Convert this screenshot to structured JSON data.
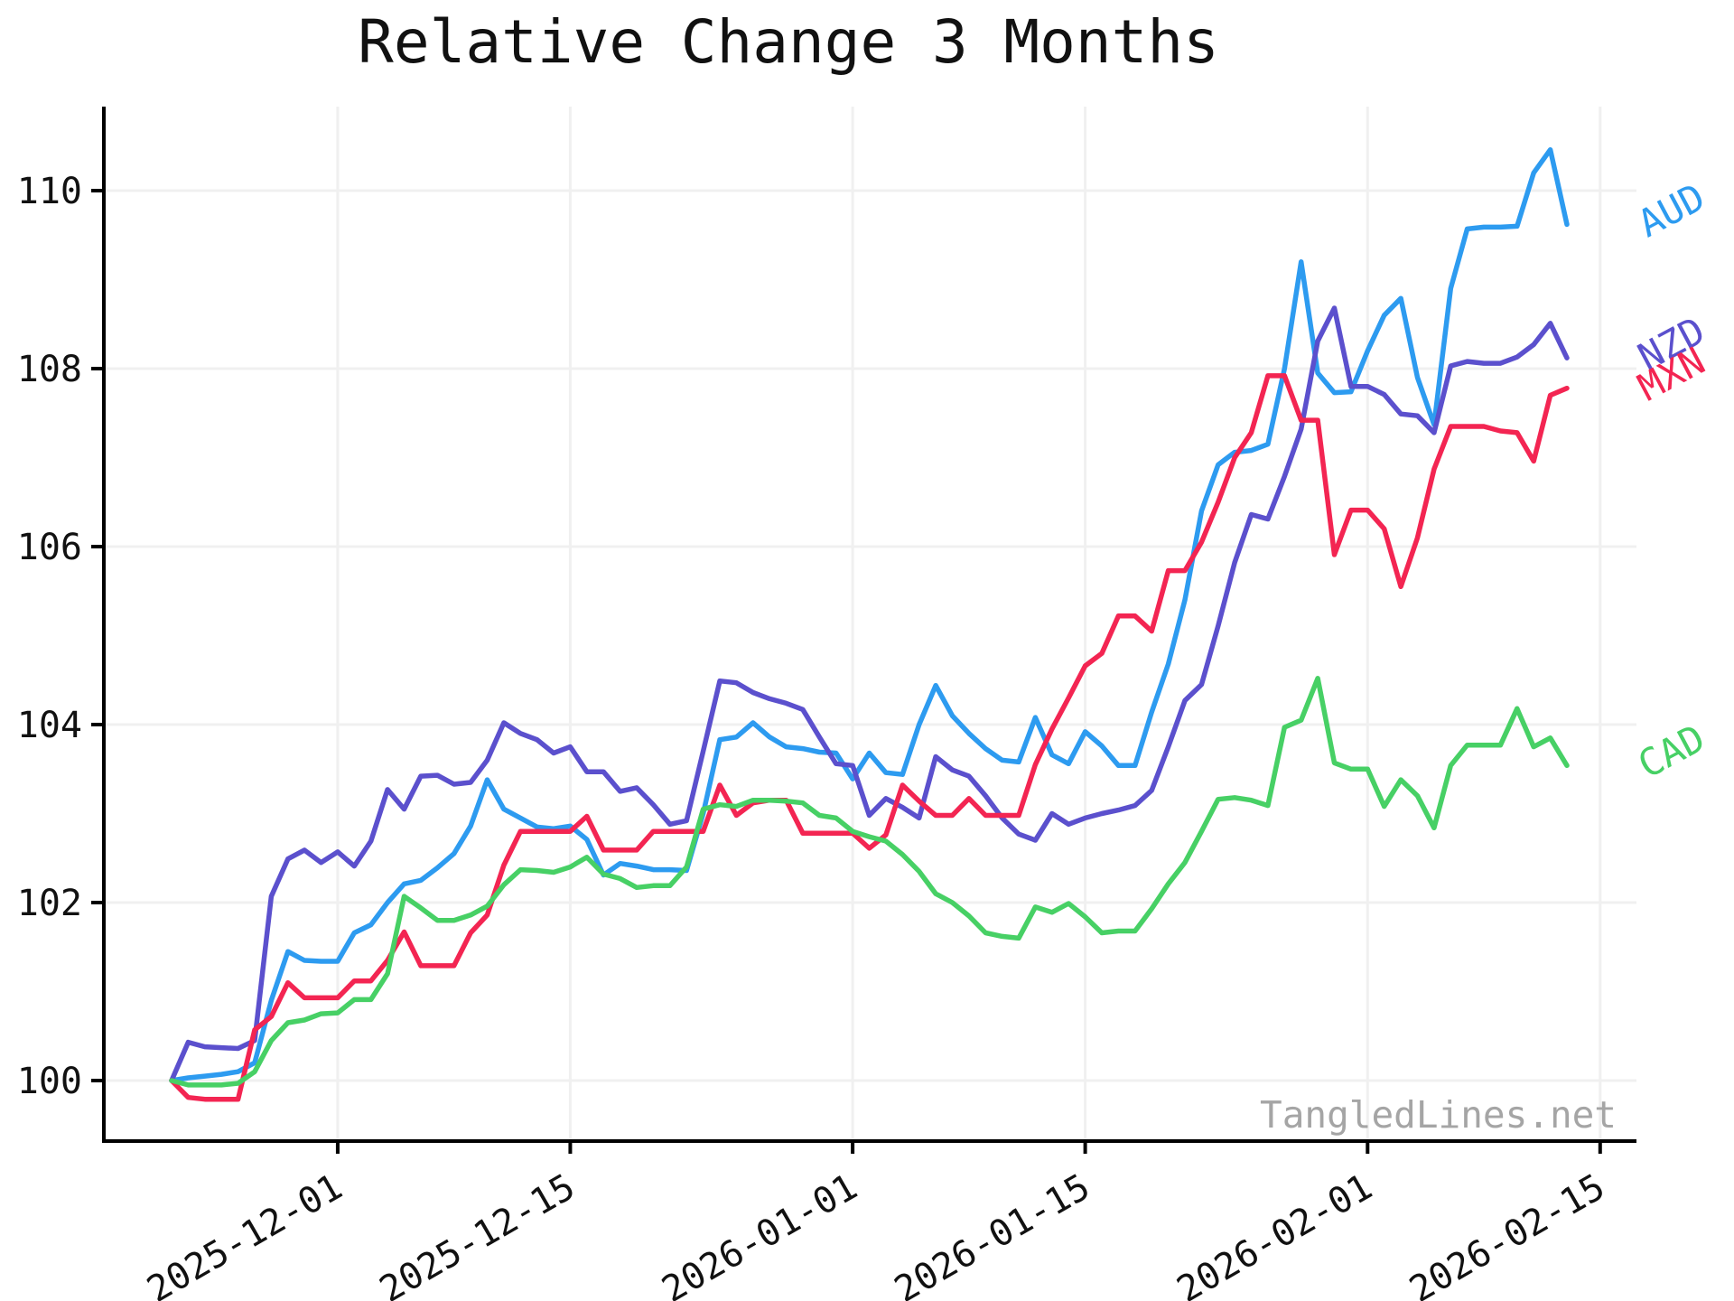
{
  "title": "Relative Change 3 Months",
  "watermark": "TangledLines.net",
  "chart_data": {
    "type": "line",
    "title": "Relative Change 3 Months",
    "xlabel": "",
    "ylabel": "",
    "grid": true,
    "legend_position": "line-end-right",
    "x_tick_rotation_deg": -30,
    "series_label_rotation_deg": -28,
    "ylim": [
      99.3,
      110.95
    ],
    "yticks": [
      100,
      102,
      104,
      106,
      108,
      110
    ],
    "xticks": [
      {
        "label": "2025-12-01",
        "day": 10
      },
      {
        "label": "2025-12-15",
        "day": 24
      },
      {
        "label": "2026-01-01",
        "day": 41
      },
      {
        "label": "2026-01-15",
        "day": 55
      },
      {
        "label": "2026-02-01",
        "day": 72
      },
      {
        "label": "2026-02-15",
        "day": 86
      }
    ],
    "x": [
      "2025-11-21",
      "2025-11-22",
      "2025-11-23",
      "2025-11-24",
      "2025-11-25",
      "2025-11-26",
      "2025-11-27",
      "2025-11-28",
      "2025-11-29",
      "2025-11-30",
      "2025-12-01",
      "2025-12-02",
      "2025-12-03",
      "2025-12-04",
      "2025-12-05",
      "2025-12-06",
      "2025-12-07",
      "2025-12-08",
      "2025-12-09",
      "2025-12-10",
      "2025-12-11",
      "2025-12-12",
      "2025-12-13",
      "2025-12-14",
      "2025-12-15",
      "2025-12-16",
      "2025-12-17",
      "2025-12-18",
      "2025-12-19",
      "2025-12-20",
      "2025-12-21",
      "2025-12-22",
      "2025-12-23",
      "2025-12-24",
      "2025-12-25",
      "2025-12-26",
      "2025-12-27",
      "2025-12-28",
      "2025-12-29",
      "2025-12-30",
      "2025-12-31",
      "2026-01-01",
      "2026-01-02",
      "2026-01-03",
      "2026-01-04",
      "2026-01-05",
      "2026-01-06",
      "2026-01-07",
      "2026-01-08",
      "2026-01-09",
      "2026-01-10",
      "2026-01-11",
      "2026-01-12",
      "2026-01-13",
      "2026-01-14",
      "2026-01-15",
      "2026-01-16",
      "2026-01-17",
      "2026-01-18",
      "2026-01-19",
      "2026-01-20",
      "2026-01-21",
      "2026-01-22",
      "2026-01-23",
      "2026-01-24",
      "2026-01-25",
      "2026-01-26",
      "2026-01-27",
      "2026-01-28",
      "2026-01-29",
      "2026-01-30",
      "2026-01-31",
      "2026-02-01",
      "2026-02-02",
      "2026-02-03",
      "2026-02-04",
      "2026-02-05",
      "2026-02-06",
      "2026-02-07",
      "2026-02-08",
      "2026-02-09",
      "2026-02-10",
      "2026-02-11",
      "2026-02-12",
      "2026-02-13"
    ],
    "series": [
      {
        "name": "AUD",
        "color": "#2d9bf0",
        "values": [
          100.0,
          100.03,
          100.05,
          100.07,
          100.1,
          100.2,
          100.9,
          101.45,
          101.35,
          101.34,
          101.34,
          101.66,
          101.75,
          102.0,
          102.21,
          102.25,
          102.39,
          102.55,
          102.86,
          103.38,
          103.05,
          102.95,
          102.85,
          102.83,
          102.86,
          102.71,
          102.31,
          102.44,
          102.41,
          102.37,
          102.37,
          102.36,
          103.0,
          103.83,
          103.86,
          104.02,
          103.86,
          103.75,
          103.73,
          103.69,
          103.68,
          103.39,
          103.68,
          103.46,
          103.44,
          104.0,
          104.44,
          104.1,
          103.9,
          103.73,
          103.6,
          103.58,
          104.08,
          103.66,
          103.56,
          103.92,
          103.76,
          103.54,
          103.54,
          104.14,
          104.68,
          105.4,
          106.4,
          106.92,
          107.06,
          107.08,
          107.15,
          108.0,
          109.2,
          107.95,
          107.73,
          107.74,
          108.2,
          108.6,
          108.79,
          107.9,
          107.37,
          108.9,
          109.57,
          109.59,
          109.59,
          109.6,
          110.2,
          110.46,
          109.62
        ]
      },
      {
        "name": "NZD",
        "color": "#5b50cd",
        "values": [
          100.0,
          100.43,
          100.38,
          100.37,
          100.36,
          100.45,
          102.07,
          102.49,
          102.59,
          102.45,
          102.57,
          102.41,
          102.69,
          103.27,
          103.05,
          103.42,
          103.43,
          103.33,
          103.35,
          103.6,
          104.02,
          103.9,
          103.83,
          103.68,
          103.75,
          103.47,
          103.47,
          103.25,
          103.29,
          103.1,
          102.88,
          102.92,
          103.7,
          104.49,
          104.47,
          104.36,
          104.29,
          104.24,
          104.17,
          103.86,
          103.56,
          103.54,
          102.98,
          103.17,
          103.07,
          102.95,
          103.64,
          103.49,
          103.42,
          103.2,
          102.95,
          102.77,
          102.7,
          103.0,
          102.88,
          102.95,
          103.0,
          103.04,
          103.09,
          103.26,
          103.75,
          104.27,
          104.45,
          105.11,
          105.82,
          106.36,
          106.31,
          106.79,
          107.32,
          108.31,
          108.68,
          107.8,
          107.8,
          107.71,
          107.49,
          107.47,
          107.28,
          108.03,
          108.08,
          108.06,
          108.06,
          108.13,
          108.27,
          108.51,
          108.12
        ]
      },
      {
        "name": "MXN",
        "color": "#f32552",
        "values": [
          100.0,
          99.81,
          99.79,
          99.79,
          99.79,
          100.57,
          100.72,
          101.1,
          100.93,
          100.93,
          100.93,
          101.12,
          101.12,
          101.35,
          101.67,
          101.29,
          101.29,
          101.29,
          101.66,
          101.86,
          102.42,
          102.8,
          102.8,
          102.8,
          102.8,
          102.97,
          102.59,
          102.59,
          102.59,
          102.8,
          102.8,
          102.8,
          102.8,
          103.32,
          102.98,
          103.12,
          103.15,
          103.15,
          102.78,
          102.78,
          102.78,
          102.78,
          102.61,
          102.76,
          103.32,
          103.14,
          102.98,
          102.98,
          103.17,
          102.98,
          102.98,
          102.98,
          103.55,
          103.95,
          104.3,
          104.66,
          104.8,
          105.22,
          105.22,
          105.05,
          105.73,
          105.73,
          106.05,
          106.5,
          107.0,
          107.28,
          107.92,
          107.92,
          107.42,
          107.42,
          105.91,
          106.41,
          106.41,
          106.2,
          105.55,
          106.1,
          106.87,
          107.35,
          107.35,
          107.35,
          107.3,
          107.28,
          106.96,
          107.7,
          107.78
        ]
      },
      {
        "name": "CAD",
        "color": "#47d065",
        "values": [
          100.0,
          99.95,
          99.95,
          99.95,
          99.97,
          100.1,
          100.45,
          100.65,
          100.68,
          100.75,
          100.76,
          100.91,
          100.91,
          101.2,
          102.07,
          101.94,
          101.8,
          101.8,
          101.86,
          101.96,
          102.2,
          102.37,
          102.36,
          102.34,
          102.4,
          102.51,
          102.32,
          102.27,
          102.17,
          102.19,
          102.19,
          102.4,
          103.05,
          103.1,
          103.08,
          103.15,
          103.15,
          103.14,
          103.12,
          102.98,
          102.95,
          102.8,
          102.74,
          102.69,
          102.54,
          102.35,
          102.1,
          102.0,
          101.85,
          101.66,
          101.62,
          101.6,
          101.95,
          101.89,
          101.99,
          101.84,
          101.66,
          101.68,
          101.68,
          101.93,
          102.21,
          102.45,
          102.8,
          103.16,
          103.18,
          103.15,
          103.09,
          103.97,
          104.05,
          104.52,
          103.57,
          103.5,
          103.5,
          103.08,
          103.38,
          103.2,
          102.84,
          103.54,
          103.77,
          103.77,
          103.77,
          104.18,
          103.75,
          103.85,
          103.54
        ]
      }
    ],
    "colors": {
      "grid": "#f0f0f0",
      "spine": "#000000",
      "tick_label": "#111111",
      "title": "#111111",
      "watermark": "#a5a5a5",
      "background": "#ffffff"
    }
  }
}
